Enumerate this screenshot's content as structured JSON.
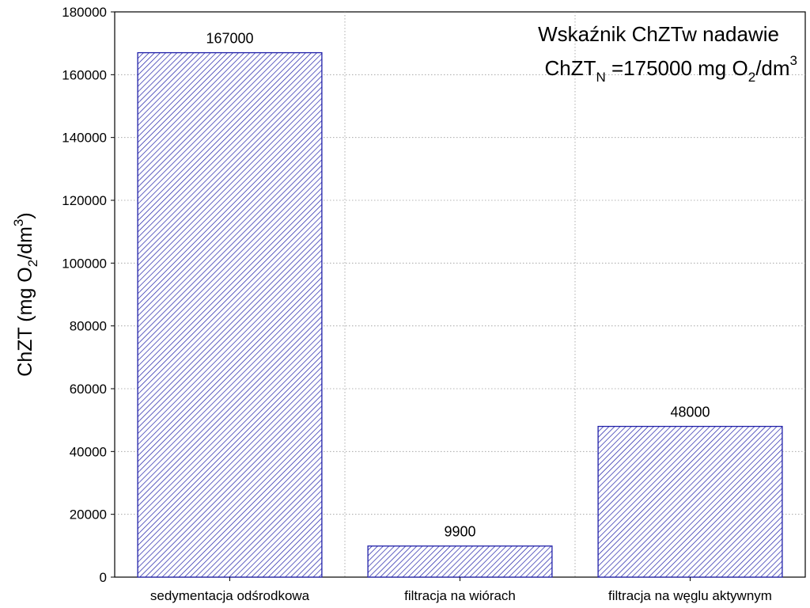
{
  "chart_data": {
    "type": "bar",
    "categories": [
      "sedymentacja odśrodkowa",
      "filtracja na wiórach",
      "filtracja na węglu aktywnym"
    ],
    "values": [
      167000,
      9900,
      48000
    ],
    "value_labels": [
      "167000",
      "9900",
      "48000"
    ],
    "title": "",
    "xlabel": "",
    "ylabel": {
      "prefix": "ChZT (mg O",
      "sub": "2",
      "middle": "/dm",
      "sup": "3",
      "suffix": ")"
    },
    "ylim": [
      0,
      180000
    ],
    "yticks": [
      0,
      20000,
      40000,
      60000,
      80000,
      100000,
      120000,
      140000,
      160000,
      180000
    ],
    "grid": "dotted",
    "bar_fill": "hatched diagonal",
    "bar_color": "#1f1fa8",
    "annotation": {
      "line1": "Wskaźnik ChZTw nadawie",
      "line2_prefix": "ChZT",
      "line2_sub1": "N",
      "line2_middle": " =175000 mg O",
      "line2_sub2": "2",
      "line2_middle2": "/dm",
      "line2_sup": "3",
      "placement": "top-right"
    }
  }
}
